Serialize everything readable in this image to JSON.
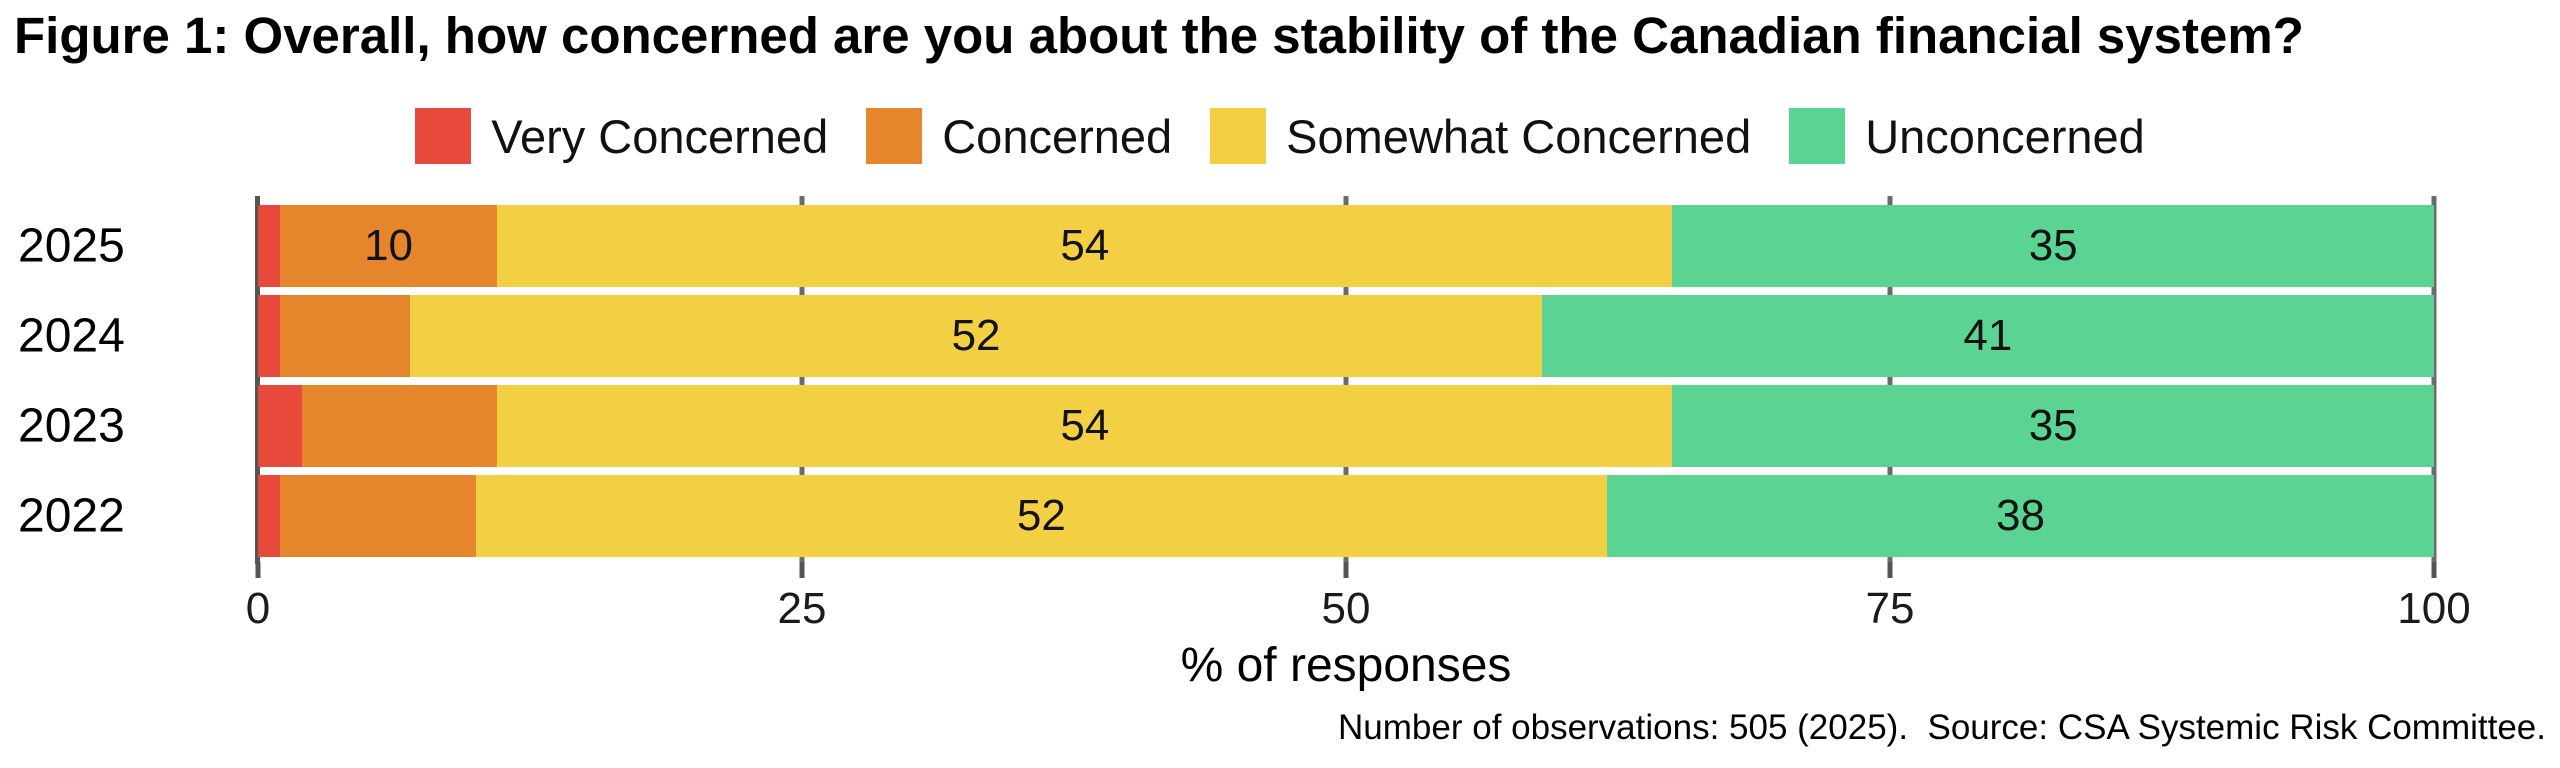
{
  "figure": {
    "title": "Figure 1: Overall, how concerned are you about the stability of the Canadian financial system?",
    "footnote": "Number of observations: 505 (2025).  Source: CSA Systemic Risk Committee."
  },
  "legend": {
    "items": [
      {
        "label": "Very Concerned",
        "color": "#E7493A"
      },
      {
        "label": "Concerned",
        "color": "#E5862C"
      },
      {
        "label": "Somewhat Concerned",
        "color": "#F2CF43"
      },
      {
        "label": "Unconcerned",
        "color": "#5BD392"
      }
    ]
  },
  "chart_data": {
    "type": "bar",
    "orientation": "horizontal-stacked",
    "title": "Figure 1: Overall, how concerned are you about the stability of the Canadian financial system?",
    "categories": [
      "2025",
      "2024",
      "2023",
      "2022"
    ],
    "series": [
      {
        "name": "Very Concerned",
        "color": "#E7493A",
        "values": [
          1,
          1,
          2,
          1
        ]
      },
      {
        "name": "Concerned",
        "color": "#E5862C",
        "values": [
          10,
          6,
          9,
          9
        ]
      },
      {
        "name": "Somewhat Concerned",
        "color": "#F2CF43",
        "values": [
          54,
          52,
          54,
          52
        ]
      },
      {
        "name": "Unconcerned",
        "color": "#5BD392",
        "values": [
          35,
          41,
          35,
          38
        ]
      }
    ],
    "visible_value_labels": {
      "2025": [
        10,
        54,
        35
      ],
      "2024": [
        52,
        41
      ],
      "2023": [
        54,
        35
      ],
      "2022": [
        52,
        38
      ]
    },
    "value_label_min": 10,
    "xlabel": "% of responses",
    "xlim": [
      0,
      100
    ],
    "xticks": [
      0,
      25,
      50,
      75,
      100
    ],
    "grid": "vertical gridlines behind bars",
    "legend_position": "top"
  },
  "colors": {
    "axis": "#545454",
    "gridline": "#6b6b6b",
    "text": "#000000"
  }
}
